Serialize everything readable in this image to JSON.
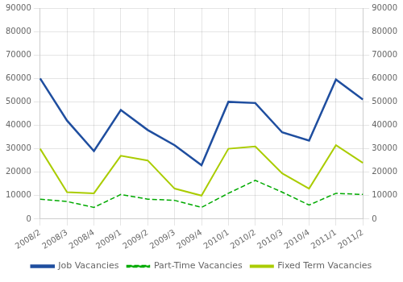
{
  "chart_data": {
    "type": "line",
    "categories": [
      "2008/2",
      "2008/3",
      "2008/4",
      "2009/1",
      "2009/2",
      "2009/3",
      "2009/4",
      "2010/1",
      "2010/2",
      "2010/3",
      "2010/4",
      "2011/1",
      "2011/2"
    ],
    "series": [
      {
        "name": "Job Vacancies",
        "color": "#1f4e9f",
        "line_style": "solid",
        "values": [
          60000,
          42000,
          29000,
          46500,
          38000,
          31500,
          23000,
          50000,
          49500,
          37000,
          33500,
          59500,
          51000
        ]
      },
      {
        "name": "Part-Time Vacancies",
        "color": "#00aa00",
        "line_style": "dashed",
        "values": [
          8500,
          7500,
          5000,
          10500,
          8500,
          8000,
          5000,
          11000,
          16500,
          11500,
          6000,
          11000,
          10500
        ]
      },
      {
        "name": "Fixed Term Vacancies",
        "color": "#aacc00",
        "line_style": "solid",
        "values": [
          30000,
          11500,
          11000,
          27000,
          25000,
          13000,
          10000,
          30000,
          31000,
          19500,
          13000,
          31500,
          24000
        ]
      }
    ],
    "ylim": [
      0,
      90000
    ],
    "yticks": [
      0,
      10000,
      20000,
      30000,
      40000,
      50000,
      60000,
      70000,
      80000,
      90000
    ],
    "y2lim": [
      0,
      90000
    ],
    "y2ticks": [
      0,
      10000,
      20000,
      30000,
      40000,
      50000,
      60000,
      70000,
      80000,
      90000
    ],
    "grid": true,
    "legend": "bottom"
  }
}
